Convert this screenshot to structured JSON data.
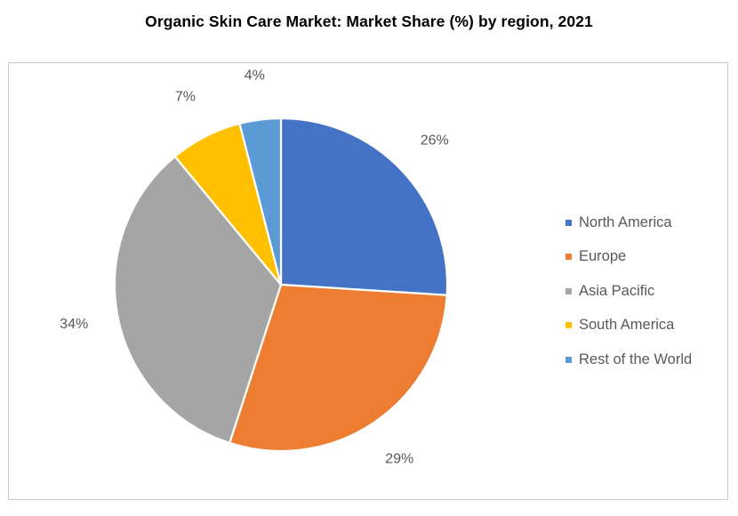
{
  "chart_data": {
    "type": "pie",
    "title": "Organic Skin Care Market: Market Share (%) by region, 2021",
    "categories": [
      "North America",
      "Europe",
      "Asia Pacific",
      "South America",
      "Rest of the World"
    ],
    "values": [
      26,
      29,
      34,
      7,
      4
    ],
    "data_labels": [
      "26%",
      "29%",
      "34%",
      "7%",
      "4%"
    ],
    "colors": [
      "#4472C4",
      "#ED7D31",
      "#A5A5A5",
      "#FFC000",
      "#5B9BD5"
    ],
    "start_angle": "12 o'clock",
    "direction": "clockwise",
    "legend_position": "right"
  }
}
